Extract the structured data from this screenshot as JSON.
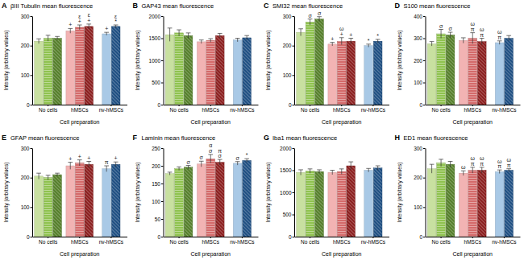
{
  "chart_data": [
    {
      "type": "bar",
      "panel": "A",
      "title": "βIII Tubulin mean fluorescence",
      "x_label": "Cell preparation",
      "y_label": "Intensity (arbitrary values)",
      "categories": [
        "No cells",
        "hMSCs",
        "nv-hMSCs"
      ],
      "ylim": [
        0,
        300
      ],
      "yticks": [
        0,
        100,
        200,
        300
      ],
      "series": [
        {
          "colors": [
            "#c8e0a0",
            "#f2b3b3",
            "#a9c9e6"
          ],
          "values": [
            215,
            250,
            240
          ],
          "errors": [
            8,
            8,
            5
          ],
          "annotations": [
            null,
            [
              "+"
            ],
            [
              "+"
            ]
          ]
        },
        {
          "colors": [
            "#8fc24f",
            "#d46a6a",
            null
          ],
          "values": [
            225,
            262,
            null
          ],
          "errors": [
            10,
            8,
            null
          ],
          "annotations": [
            null,
            [
              "ε",
              "+"
            ],
            null
          ]
        },
        {
          "colors": [
            "#557f2b",
            "#8b1f1f",
            "#1f4f82"
          ],
          "values": [
            225,
            265,
            265
          ],
          "errors": [
            6,
            8,
            5
          ],
          "annotations": [
            null,
            [
              "ε",
              "+"
            ],
            [
              "ε",
              "*"
            ]
          ]
        }
      ]
    },
    {
      "type": "bar",
      "panel": "B",
      "title": "GAP43 mean fluorescence",
      "x_label": "Cell preparation",
      "y_label": "Intensity (arbitrary values)",
      "categories": [
        "No cells",
        "hMSCs",
        "nv-hMSCs"
      ],
      "ylim": [
        0,
        2000
      ],
      "yticks": [
        0,
        500,
        1000,
        1500,
        2000
      ],
      "series": [
        {
          "colors": [
            "#c8e0a0",
            "#f2b3b3",
            "#a9c9e6"
          ],
          "values": [
            1580,
            1420,
            1460
          ],
          "errors": [
            150,
            40,
            40
          ]
        },
        {
          "colors": [
            "#8fc24f",
            "#d46a6a",
            null
          ],
          "values": [
            1620,
            1450,
            null
          ],
          "errors": [
            70,
            40,
            null
          ]
        },
        {
          "colors": [
            "#557f2b",
            "#8b1f1f",
            "#1f4f82"
          ],
          "values": [
            1560,
            1560,
            1510
          ],
          "errors": [
            60,
            50,
            50
          ]
        }
      ]
    },
    {
      "type": "bar",
      "panel": "C",
      "title": "SMI32 mean fluorescence",
      "x_label": "Cell preparation",
      "y_label": "Intensity (arbitrary values)",
      "categories": [
        "No cells",
        "hMSCs",
        "nv-hMSCs"
      ],
      "ylim": [
        0,
        300
      ],
      "yticks": [
        0,
        100,
        200,
        300
      ],
      "series": [
        {
          "colors": [
            "#c8e0a0",
            "#f2b3b3",
            "#a9c9e6"
          ],
          "values": [
            245,
            205,
            200
          ],
          "errors": [
            12,
            6,
            5
          ],
          "annotations": [
            null,
            [
              "+"
            ],
            [
              "*"
            ]
          ]
        },
        {
          "colors": [
            "#8fc24f",
            "#d46a6a",
            null
          ],
          "values": [
            280,
            215,
            null
          ],
          "errors": [
            10,
            12,
            null
          ],
          "annotations": [
            [
              "σ"
            ],
            [
              "ω",
              "+"
            ],
            null
          ]
        },
        {
          "colors": [
            "#557f2b",
            "#8b1f1f",
            "#1f4f82"
          ],
          "values": [
            290,
            215,
            215
          ],
          "errors": [
            8,
            10,
            6
          ],
          "annotations": [
            [
              "σ"
            ],
            [
              "+"
            ],
            [
              "*"
            ]
          ]
        }
      ]
    },
    {
      "type": "bar",
      "panel": "D",
      "title": "S100 mean fluorescence",
      "x_label": "Cell preparation",
      "y_label": "Intensity (arbitrary values)",
      "categories": [
        "No cells",
        "hMSCs",
        "nv-hMSCs"
      ],
      "ylim": [
        0,
        400
      ],
      "yticks": [
        0,
        100,
        200,
        300,
        400
      ],
      "series": [
        {
          "colors": [
            "#c8e0a0",
            "#f2b3b3",
            "#a9c9e6"
          ],
          "values": [
            275,
            290,
            280
          ],
          "errors": [
            10,
            12,
            8
          ],
          "annotations": [
            null,
            null,
            [
              "ω",
              "π"
            ]
          ]
        },
        {
          "colors": [
            "#8fc24f",
            "#d46a6a",
            null
          ],
          "values": [
            320,
            300,
            null
          ],
          "errors": [
            20,
            25,
            null
          ],
          "annotations": [
            [
              "σ"
            ],
            [
              "ω",
              "π"
            ],
            null
          ]
        },
        {
          "colors": [
            "#557f2b",
            "#8b1f1f",
            "#1f4f82"
          ],
          "values": [
            315,
            285,
            300
          ],
          "errors": [
            12,
            15,
            12
          ],
          "annotations": [
            [
              "σ"
            ],
            [
              "ω",
              "π"
            ],
            null
          ]
        }
      ]
    },
    {
      "type": "bar",
      "panel": "E",
      "title": "GFAP mean fluorescence",
      "x_label": "Cell preparation",
      "y_label": "Intensity (arbitrary values)",
      "categories": [
        "No cells",
        "hMSCs",
        "nv-hMSCs"
      ],
      "ylim": [
        0,
        300
      ],
      "yticks": [
        0,
        100,
        200,
        300
      ],
      "series": [
        {
          "colors": [
            "#c8e0a0",
            "#f2b3b3",
            "#a9c9e6"
          ],
          "values": [
            205,
            240,
            230
          ],
          "errors": [
            10,
            12,
            10
          ],
          "annotations": [
            null,
            [
              "+"
            ],
            [
              "π"
            ]
          ]
        },
        {
          "colors": [
            "#8fc24f",
            "#d46a6a",
            null
          ],
          "values": [
            200,
            250,
            null
          ],
          "errors": [
            8,
            10,
            null
          ],
          "annotations": [
            null,
            [
              "+"
            ],
            null
          ]
        },
        {
          "colors": [
            "#557f2b",
            "#8b1f1f",
            "#1f4f82"
          ],
          "values": [
            210,
            245,
            245
          ],
          "errors": [
            5,
            10,
            8
          ],
          "annotations": [
            null,
            [
              "+"
            ],
            [
              "+"
            ]
          ]
        }
      ]
    },
    {
      "type": "bar",
      "panel": "F",
      "title": "Laminin mean fluorescence",
      "x_label": "Cell preparation",
      "y_label": "Intensity (arbitrary values)",
      "categories": [
        "No cells",
        "hMSCs",
        "nv-hMSCs"
      ],
      "ylim": [
        0,
        250
      ],
      "yticks": [
        0,
        50,
        100,
        150,
        200,
        250
      ],
      "series": [
        {
          "colors": [
            "#c8e0a0",
            "#f2b3b3",
            "#a9c9e6"
          ],
          "values": [
            178,
            205,
            207
          ],
          "errors": [
            4,
            8,
            5
          ],
          "annotations": [
            null,
            [
              "σ"
            ],
            [
              "σ"
            ]
          ]
        },
        {
          "colors": [
            "#8fc24f",
            "#d46a6a",
            null
          ],
          "values": [
            192,
            220,
            null
          ],
          "errors": [
            5,
            12,
            null
          ],
          "annotations": [
            null,
            [
              "α",
              "σ"
            ],
            null
          ]
        },
        {
          "colors": [
            "#557f2b",
            "#8b1f1f",
            "#1f4f82"
          ],
          "values": [
            196,
            210,
            215
          ],
          "errors": [
            5,
            8,
            5
          ],
          "annotations": [
            [
              "σ"
            ],
            [
              "π",
              "σ"
            ],
            [
              "*"
            ]
          ]
        }
      ]
    },
    {
      "type": "bar",
      "panel": "G",
      "title": "Iba1 mean fluorescence",
      "x_label": "Cell preparation",
      "y_label": "Intensity (arbitrary values)",
      "categories": [
        "No cells",
        "hMSCs",
        "nv-hMSCs"
      ],
      "ylim": [
        0,
        2000
      ],
      "yticks": [
        0,
        500,
        1000,
        1500,
        2000
      ],
      "series": [
        {
          "colors": [
            "#c8e0a0",
            "#f2b3b3",
            "#a9c9e6"
          ],
          "values": [
            1450,
            1450,
            1500
          ],
          "errors": [
            60,
            50,
            40
          ]
        },
        {
          "colors": [
            "#8fc24f",
            "#d46a6a",
            null
          ],
          "values": [
            1480,
            1470,
            null
          ],
          "errors": [
            50,
            60,
            null
          ]
        },
        {
          "colors": [
            "#557f2b",
            "#8b1f1f",
            "#1f4f82"
          ],
          "values": [
            1470,
            1600,
            1550
          ],
          "errors": [
            40,
            90,
            50
          ]
        }
      ]
    },
    {
      "type": "bar",
      "panel": "H",
      "title": "ED1 mean fluorescence",
      "x_label": "Cell preparation",
      "y_label": "Intensity (arbitrary values)",
      "categories": [
        "No cells",
        "hMSCs",
        "nv-hMSCs"
      ],
      "ylim": [
        0,
        300
      ],
      "yticks": [
        0,
        100,
        200,
        300
      ],
      "series": [
        {
          "colors": [
            "#c8e0a0",
            "#f2b3b3",
            "#a9c9e6"
          ],
          "values": [
            230,
            215,
            220
          ],
          "errors": [
            15,
            8,
            6
          ],
          "annotations": [
            null,
            [
              "ω"
            ],
            [
              "ω",
              "π"
            ]
          ]
        },
        {
          "colors": [
            "#8fc24f",
            "#d46a6a",
            null
          ],
          "values": [
            250,
            225,
            null
          ],
          "errors": [
            12,
            10,
            null
          ],
          "annotations": [
            null,
            [
              "ω",
              "π"
            ],
            null
          ]
        },
        {
          "colors": [
            "#557f2b",
            "#8b1f1f",
            "#1f4f82"
          ],
          "values": [
            245,
            225,
            225
          ],
          "errors": [
            10,
            10,
            5
          ],
          "annotations": [
            null,
            [
              "ω",
              "π"
            ],
            [
              "ω",
              "π"
            ]
          ]
        }
      ]
    }
  ]
}
